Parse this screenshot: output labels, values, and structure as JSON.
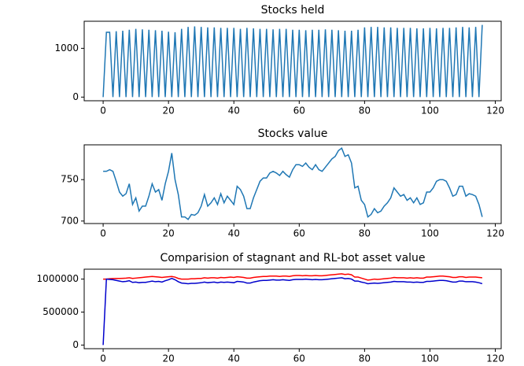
{
  "chart_data": [
    {
      "type": "line",
      "title": "Stocks held",
      "x": [
        0,
        1,
        2,
        3,
        4,
        5,
        6,
        7,
        8,
        9,
        10,
        11,
        12,
        13,
        14,
        15,
        16,
        17,
        18,
        19,
        20,
        21,
        22,
        23,
        24,
        25,
        26,
        27,
        28,
        29,
        30,
        31,
        32,
        33,
        34,
        35,
        36,
        37,
        38,
        39,
        40,
        41,
        42,
        43,
        44,
        45,
        46,
        47,
        48,
        49,
        50,
        51,
        52,
        53,
        54,
        55,
        56,
        57,
        58,
        59,
        60,
        61,
        62,
        63,
        64,
        65,
        66,
        67,
        68,
        69,
        70,
        71,
        72,
        73,
        74,
        75,
        76,
        77,
        78,
        79,
        80,
        81,
        82,
        83,
        84,
        85,
        86,
        87,
        88,
        89,
        90,
        91,
        92,
        93,
        94,
        95,
        96,
        97,
        98,
        99,
        100,
        101,
        102,
        103,
        104,
        105,
        106,
        107,
        108,
        109,
        110,
        111,
        112,
        113,
        114,
        115,
        116
      ],
      "series": [
        {
          "color": "#1f77b4",
          "values": [
            0,
            1330,
            1330,
            0,
            1350,
            0,
            1360,
            0,
            1380,
            0,
            1400,
            0,
            1390,
            0,
            1380,
            0,
            1370,
            0,
            1360,
            0,
            1340,
            0,
            1330,
            0,
            1400,
            0,
            1440,
            0,
            1450,
            0,
            1440,
            0,
            1430,
            0,
            1430,
            0,
            1420,
            0,
            1420,
            0,
            1420,
            0,
            1400,
            0,
            1420,
            0,
            1410,
            0,
            1400,
            0,
            1400,
            0,
            1390,
            0,
            1400,
            0,
            1400,
            0,
            1380,
            0,
            1380,
            0,
            1370,
            0,
            1380,
            0,
            1380,
            0,
            1390,
            0,
            1380,
            0,
            1370,
            0,
            1360,
            0,
            1360,
            0,
            1380,
            0,
            1430,
            0,
            1440,
            0,
            1440,
            0,
            1430,
            0,
            1430,
            0,
            1420,
            0,
            1420,
            0,
            1420,
            0,
            1410,
            0,
            1410,
            0,
            1420,
            0,
            1410,
            0,
            1420,
            0,
            1420,
            0,
            1430,
            0,
            1440,
            0,
            1430,
            0,
            1440,
            0,
            1480
          ]
        }
      ],
      "xlim": [
        -5.8,
        121.8
      ],
      "xticks": [
        0,
        20,
        40,
        60,
        80,
        100,
        120
      ],
      "ylim": [
        -75,
        1555
      ],
      "yticks": [
        0,
        1000
      ]
    },
    {
      "type": "line",
      "title": "Stocks value",
      "x": [
        0,
        1,
        2,
        3,
        4,
        5,
        6,
        7,
        8,
        9,
        10,
        11,
        12,
        13,
        14,
        15,
        16,
        17,
        18,
        19,
        20,
        21,
        22,
        23,
        24,
        25,
        26,
        27,
        28,
        29,
        30,
        31,
        32,
        33,
        34,
        35,
        36,
        37,
        38,
        39,
        40,
        41,
        42,
        43,
        44,
        45,
        46,
        47,
        48,
        49,
        50,
        51,
        52,
        53,
        54,
        55,
        56,
        57,
        58,
        59,
        60,
        61,
        62,
        63,
        64,
        65,
        66,
        67,
        68,
        69,
        70,
        71,
        72,
        73,
        74,
        75,
        76,
        77,
        78,
        79,
        80,
        81,
        82,
        83,
        84,
        85,
        86,
        87,
        88,
        89,
        90,
        91,
        92,
        93,
        94,
        95,
        96,
        97,
        98,
        99,
        100,
        101,
        102,
        103,
        104,
        105,
        106,
        107,
        108,
        109,
        110,
        111,
        112,
        113,
        114,
        115,
        116
      ],
      "series": [
        {
          "color": "#1f77b4",
          "values": [
            760,
            760,
            762,
            760,
            748,
            735,
            730,
            733,
            745,
            720,
            728,
            712,
            718,
            718,
            730,
            745,
            735,
            738,
            725,
            745,
            760,
            782,
            750,
            732,
            705,
            705,
            702,
            708,
            707,
            710,
            718,
            732,
            718,
            722,
            728,
            720,
            733,
            722,
            730,
            725,
            720,
            742,
            738,
            730,
            715,
            715,
            728,
            738,
            748,
            752,
            752,
            758,
            760,
            758,
            755,
            760,
            756,
            753,
            762,
            768,
            768,
            766,
            770,
            765,
            762,
            768,
            762,
            760,
            765,
            770,
            775,
            778,
            785,
            788,
            778,
            780,
            770,
            740,
            742,
            725,
            720,
            705,
            708,
            715,
            710,
            712,
            718,
            722,
            728,
            740,
            735,
            730,
            732,
            725,
            728,
            722,
            728,
            720,
            722,
            735,
            735,
            740,
            748,
            750,
            750,
            748,
            740,
            730,
            732,
            742,
            742,
            730,
            733,
            732,
            730,
            720,
            705
          ]
        }
      ],
      "xlim": [
        -5.8,
        121.8
      ],
      "xticks": [
        0,
        20,
        40,
        60,
        80,
        100,
        120
      ],
      "ylim": [
        697,
        792
      ],
      "yticks": [
        700,
        750
      ]
    },
    {
      "type": "line",
      "title": "Comparision of stagnant and RL-bot asset value",
      "x": [
        0,
        1,
        2,
        3,
        4,
        5,
        6,
        7,
        8,
        9,
        10,
        11,
        12,
        13,
        14,
        15,
        16,
        17,
        18,
        19,
        20,
        21,
        22,
        23,
        24,
        25,
        26,
        27,
        28,
        29,
        30,
        31,
        32,
        33,
        34,
        35,
        36,
        37,
        38,
        39,
        40,
        41,
        42,
        43,
        44,
        45,
        46,
        47,
        48,
        49,
        50,
        51,
        52,
        53,
        54,
        55,
        56,
        57,
        58,
        59,
        60,
        61,
        62,
        63,
        64,
        65,
        66,
        67,
        68,
        69,
        70,
        71,
        72,
        73,
        74,
        75,
        76,
        77,
        78,
        79,
        80,
        81,
        82,
        83,
        84,
        85,
        86,
        87,
        88,
        89,
        90,
        91,
        92,
        93,
        94,
        95,
        96,
        97,
        98,
        99,
        100,
        101,
        102,
        103,
        104,
        105,
        106,
        107,
        108,
        109,
        110,
        111,
        112,
        113,
        114,
        115,
        116
      ],
      "series": [
        {
          "color": "#ff0000",
          "values": [
            1000000,
            1000000,
            1005000,
            1008000,
            1010000,
            1010000,
            1012000,
            1015000,
            1020000,
            1010000,
            1015000,
            1020000,
            1025000,
            1030000,
            1035000,
            1040000,
            1035000,
            1030000,
            1025000,
            1030000,
            1035000,
            1040000,
            1030000,
            1010000,
            1000000,
            1000000,
            1000000,
            1005000,
            1005000,
            1010000,
            1010000,
            1020000,
            1015000,
            1020000,
            1020000,
            1015000,
            1025000,
            1020000,
            1025000,
            1030000,
            1025000,
            1035000,
            1030000,
            1025000,
            1015000,
            1015000,
            1025000,
            1030000,
            1035000,
            1040000,
            1040000,
            1045000,
            1045000,
            1045000,
            1040000,
            1045000,
            1045000,
            1040000,
            1050000,
            1055000,
            1055000,
            1050000,
            1055000,
            1050000,
            1050000,
            1055000,
            1050000,
            1050000,
            1055000,
            1060000,
            1065000,
            1070000,
            1075000,
            1080000,
            1070000,
            1075000,
            1065000,
            1030000,
            1030000,
            1015000,
            1000000,
            985000,
            990000,
            1000000,
            995000,
            1000000,
            1005000,
            1010000,
            1015000,
            1025000,
            1020000,
            1020000,
            1020000,
            1015000,
            1020000,
            1015000,
            1020000,
            1015000,
            1015000,
            1030000,
            1030000,
            1035000,
            1040000,
            1045000,
            1045000,
            1040000,
            1035000,
            1025000,
            1025000,
            1035000,
            1035000,
            1025000,
            1030000,
            1030000,
            1030000,
            1025000,
            1020000
          ]
        },
        {
          "color": "#0000cc",
          "values": [
            0,
            1000000,
            995000,
            990000,
            980000,
            970000,
            960000,
            965000,
            975000,
            950000,
            955000,
            945000,
            950000,
            950000,
            960000,
            970000,
            960000,
            965000,
            955000,
            975000,
            990000,
            1010000,
            990000,
            960000,
            940000,
            935000,
            930000,
            935000,
            935000,
            940000,
            945000,
            955000,
            945000,
            950000,
            955000,
            945000,
            955000,
            950000,
            955000,
            950000,
            945000,
            965000,
            960000,
            955000,
            940000,
            940000,
            955000,
            965000,
            975000,
            980000,
            980000,
            985000,
            990000,
            985000,
            985000,
            990000,
            985000,
            980000,
            990000,
            995000,
            995000,
            995000,
            1000000,
            995000,
            990000,
            995000,
            990000,
            990000,
            995000,
            1000000,
            1005000,
            1010000,
            1015000,
            1020000,
            1005000,
            1010000,
            1000000,
            970000,
            970000,
            955000,
            945000,
            930000,
            935000,
            940000,
            935000,
            940000,
            945000,
            950000,
            955000,
            965000,
            960000,
            960000,
            960000,
            955000,
            955000,
            950000,
            955000,
            950000,
            950000,
            965000,
            965000,
            970000,
            975000,
            980000,
            980000,
            975000,
            965000,
            955000,
            955000,
            970000,
            970000,
            960000,
            960000,
            960000,
            955000,
            945000,
            930000
          ]
        }
      ],
      "xlim": [
        -5.8,
        121.8
      ],
      "xticks": [
        0,
        20,
        40,
        60,
        80,
        100,
        120
      ],
      "ylim": [
        -55000,
        1150000
      ],
      "yticks": [
        0,
        500000,
        1000000
      ]
    }
  ]
}
